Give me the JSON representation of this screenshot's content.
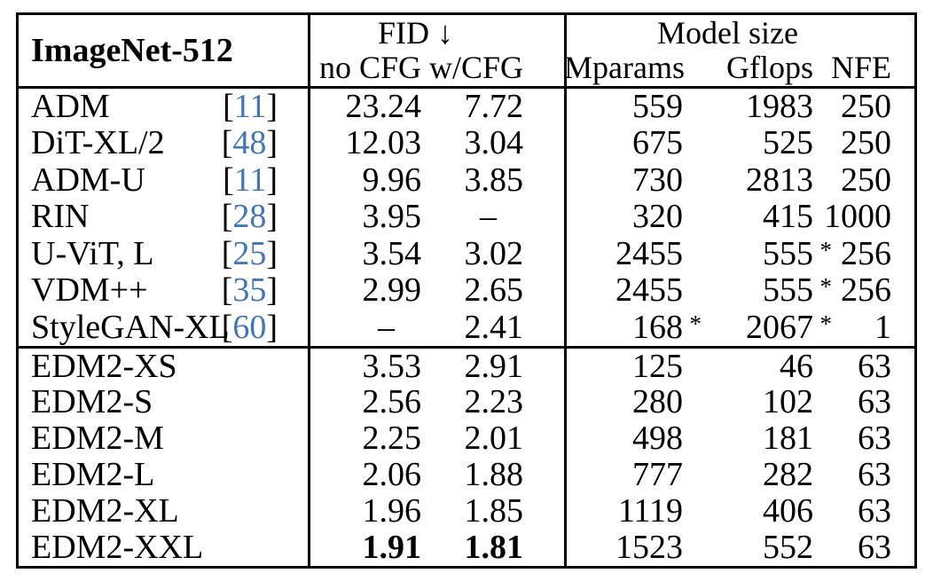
{
  "table": {
    "title": "ImageNet-512",
    "groups": {
      "fid": {
        "label": "FID ↓",
        "sub": [
          "no CFG",
          "w/CFG"
        ]
      },
      "model_size": {
        "label": "Model size",
        "sub": [
          "Mparams",
          "Gflops",
          "NFE"
        ]
      }
    },
    "colors": {
      "citation_blue": "#4276b5",
      "text": "#000000",
      "border": "#000000",
      "background": "#ffffff"
    },
    "missing_value_glyph": "–",
    "sections": [
      {
        "name": "baselines",
        "rows": [
          {
            "name": "ADM",
            "ref": "11",
            "no_cfg": "23.24",
            "w_cfg": "7.72",
            "mparams": "559",
            "gflops": "1983",
            "nfe": "250"
          },
          {
            "name": "DiT-XL/2",
            "ref": "48",
            "no_cfg": "12.03",
            "w_cfg": "3.04",
            "mparams": "675",
            "gflops": "525",
            "nfe": "250"
          },
          {
            "name": "ADM-U",
            "ref": "11",
            "no_cfg": "9.96",
            "w_cfg": "3.85",
            "mparams": "730",
            "gflops": "2813",
            "nfe": "250"
          },
          {
            "name": "RIN",
            "ref": "28",
            "no_cfg": "3.95",
            "w_cfg": "–",
            "mparams": "320",
            "gflops": "415",
            "nfe": "1000"
          },
          {
            "name": "U-ViT, L",
            "ref": "25",
            "no_cfg": "3.54",
            "w_cfg": "3.02",
            "mparams": "2455",
            "gflops": "555",
            "gflops_star": true,
            "nfe": "256"
          },
          {
            "name": "VDM++",
            "ref": "35",
            "no_cfg": "2.99",
            "w_cfg": "2.65",
            "mparams": "2455",
            "gflops": "555",
            "gflops_star": true,
            "nfe": "256"
          },
          {
            "name": "StyleGAN-XL",
            "ref": "60",
            "no_cfg": "–",
            "w_cfg": "2.41",
            "mparams": "168",
            "mparams_star": true,
            "gflops": "2067",
            "gflops_star": true,
            "nfe": "1"
          }
        ]
      },
      {
        "name": "edm2",
        "rows": [
          {
            "name": "EDM2-XS",
            "no_cfg": "3.53",
            "w_cfg": "2.91",
            "mparams": "125",
            "gflops": "46",
            "nfe": "63"
          },
          {
            "name": "EDM2-S",
            "no_cfg": "2.56",
            "w_cfg": "2.23",
            "mparams": "280",
            "gflops": "102",
            "nfe": "63"
          },
          {
            "name": "EDM2-M",
            "no_cfg": "2.25",
            "w_cfg": "2.01",
            "mparams": "498",
            "gflops": "181",
            "nfe": "63"
          },
          {
            "name": "EDM2-L",
            "no_cfg": "2.06",
            "w_cfg": "1.88",
            "mparams": "777",
            "gflops": "282",
            "nfe": "63"
          },
          {
            "name": "EDM2-XL",
            "no_cfg": "1.96",
            "w_cfg": "1.85",
            "mparams": "1119",
            "gflops": "406",
            "nfe": "63"
          },
          {
            "name": "EDM2-XXL",
            "no_cfg": "1.91",
            "w_cfg": "1.81",
            "mparams": "1523",
            "gflops": "552",
            "nfe": "63",
            "bold": [
              "no_cfg",
              "w_cfg"
            ]
          }
        ]
      }
    ]
  }
}
